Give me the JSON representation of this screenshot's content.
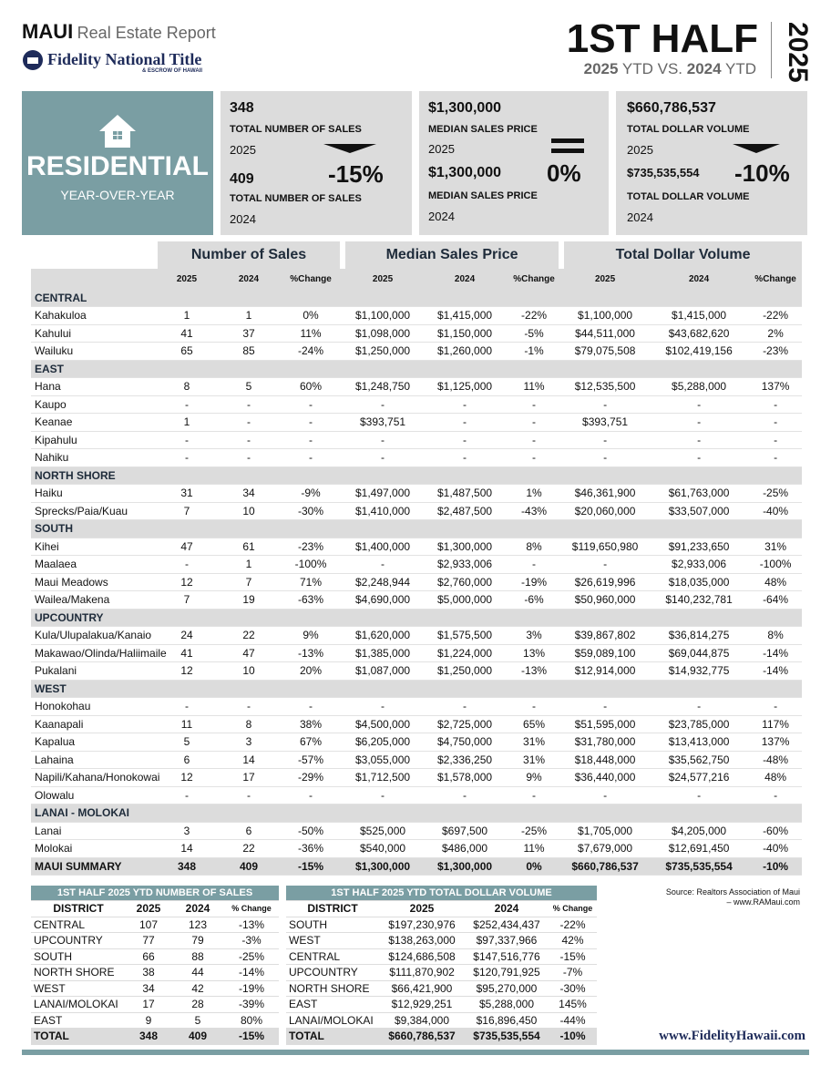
{
  "header": {
    "brand": "MAUI",
    "subtitle": "Real Estate Report",
    "logo": "Fidelity National Title",
    "logo_sub": "& ESCROW OF HAWAII",
    "period": "1ST HALF",
    "year_a": "2025",
    "ytd_a": "YTD VS.",
    "year_b": "2024",
    "ytd_b": "YTD",
    "side_year": "2025"
  },
  "summary": {
    "label": "RESIDENTIAL",
    "sublabel": "YEAR-OVER-YEAR",
    "cards": [
      {
        "value": "348",
        "label": "TOTAL NUMBER OF SALES",
        "year": "2025",
        "prev_value": "409",
        "prev_label": "TOTAL NUMBER OF SALES",
        "prev_year": "2024",
        "change": "-15%"
      },
      {
        "value": "$1,300,000",
        "label": "MEDIAN SALES PRICE",
        "year": "2025",
        "prev_value": "$1,300,000",
        "prev_label": "MEDIAN SALES PRICE",
        "prev_year": "2024",
        "change": "0%"
      },
      {
        "value": "$660,786,537",
        "label": "TOTAL DOLLAR VOLUME",
        "year": "2025",
        "prev_value": "$735,535,554",
        "prev_label": "TOTAL DOLLAR VOLUME",
        "prev_year": "2024",
        "change": "-10%"
      }
    ]
  },
  "table": {
    "groups": [
      "Number of Sales",
      "Median Sales Price",
      "Total Dollar Volume"
    ],
    "columns": [
      "2025",
      "2024",
      "%Change",
      "2025",
      "2024",
      "%Change",
      "2025",
      "2024",
      "%Change"
    ],
    "sections": [
      {
        "name": "CENTRAL",
        "rows": [
          [
            "Kahakuloa",
            "1",
            "1",
            "0%",
            "$1,100,000",
            "$1,415,000",
            "-22%",
            "$1,100,000",
            "$1,415,000",
            "-22%"
          ],
          [
            "Kahului",
            "41",
            "37",
            "11%",
            "$1,098,000",
            "$1,150,000",
            "-5%",
            "$44,511,000",
            "$43,682,620",
            "2%"
          ],
          [
            "Wailuku",
            "65",
            "85",
            "-24%",
            "$1,250,000",
            "$1,260,000",
            "-1%",
            "$79,075,508",
            "$102,419,156",
            "-23%"
          ]
        ]
      },
      {
        "name": "EAST",
        "rows": [
          [
            "Hana",
            "8",
            "5",
            "60%",
            "$1,248,750",
            "$1,125,000",
            "11%",
            "$12,535,500",
            "$5,288,000",
            "137%"
          ],
          [
            "Kaupo",
            "-",
            "-",
            "-",
            "-",
            "-",
            "-",
            "-",
            "-",
            "-"
          ],
          [
            "Keanae",
            "1",
            "-",
            "-",
            "$393,751",
            "-",
            "-",
            "$393,751",
            "-",
            "-"
          ],
          [
            "Kipahulu",
            "-",
            "-",
            "-",
            "-",
            "-",
            "-",
            "-",
            "-",
            "-"
          ],
          [
            "Nahiku",
            "-",
            "-",
            "-",
            "-",
            "-",
            "-",
            "-",
            "-",
            "-"
          ]
        ]
      },
      {
        "name": "NORTH SHORE",
        "rows": [
          [
            "Haiku",
            "31",
            "34",
            "-9%",
            "$1,497,000",
            "$1,487,500",
            "1%",
            "$46,361,900",
            "$61,763,000",
            "-25%"
          ],
          [
            "Sprecks/Paia/Kuau",
            "7",
            "10",
            "-30%",
            "$1,410,000",
            "$2,487,500",
            "-43%",
            "$20,060,000",
            "$33,507,000",
            "-40%"
          ]
        ]
      },
      {
        "name": "SOUTH",
        "rows": [
          [
            "Kihei",
            "47",
            "61",
            "-23%",
            "$1,400,000",
            "$1,300,000",
            "8%",
            "$119,650,980",
            "$91,233,650",
            "31%"
          ],
          [
            "Maalaea",
            "-",
            "1",
            "-100%",
            "-",
            "$2,933,006",
            "-",
            "-",
            "$2,933,006",
            "-100%"
          ],
          [
            "Maui Meadows",
            "12",
            "7",
            "71%",
            "$2,248,944",
            "$2,760,000",
            "-19%",
            "$26,619,996",
            "$18,035,000",
            "48%"
          ],
          [
            "Wailea/Makena",
            "7",
            "19",
            "-63%",
            "$4,690,000",
            "$5,000,000",
            "-6%",
            "$50,960,000",
            "$140,232,781",
            "-64%"
          ]
        ]
      },
      {
        "name": "UPCOUNTRY",
        "rows": [
          [
            "Kula/Ulupalakua/Kanaio",
            "24",
            "22",
            "9%",
            "$1,620,000",
            "$1,575,500",
            "3%",
            "$39,867,802",
            "$36,814,275",
            "8%"
          ],
          [
            "Makawao/Olinda/Haliimaile",
            "41",
            "47",
            "-13%",
            "$1,385,000",
            "$1,224,000",
            "13%",
            "$59,089,100",
            "$69,044,875",
            "-14%"
          ],
          [
            "Pukalani",
            "12",
            "10",
            "20%",
            "$1,087,000",
            "$1,250,000",
            "-13%",
            "$12,914,000",
            "$14,932,775",
            "-14%"
          ]
        ]
      },
      {
        "name": "WEST",
        "rows": [
          [
            "Honokohau",
            "-",
            "-",
            "-",
            "-",
            "-",
            "-",
            "-",
            "-",
            "-"
          ],
          [
            "Kaanapali",
            "11",
            "8",
            "38%",
            "$4,500,000",
            "$2,725,000",
            "65%",
            "$51,595,000",
            "$23,785,000",
            "117%"
          ],
          [
            "Kapalua",
            "5",
            "3",
            "67%",
            "$6,205,000",
            "$4,750,000",
            "31%",
            "$31,780,000",
            "$13,413,000",
            "137%"
          ],
          [
            "Lahaina",
            "6",
            "14",
            "-57%",
            "$3,055,000",
            "$2,336,250",
            "31%",
            "$18,448,000",
            "$35,562,750",
            "-48%"
          ],
          [
            "Napili/Kahana/Honokowai",
            "12",
            "17",
            "-29%",
            "$1,712,500",
            "$1,578,000",
            "9%",
            "$36,440,000",
            "$24,577,216",
            "48%"
          ],
          [
            "Olowalu",
            "-",
            "-",
            "-",
            "-",
            "-",
            "-",
            "-",
            "-",
            "-"
          ]
        ]
      },
      {
        "name": "LANAI - MOLOKAI",
        "rows": [
          [
            "Lanai",
            "3",
            "6",
            "-50%",
            "$525,000",
            "$697,500",
            "-25%",
            "$1,705,000",
            "$4,205,000",
            "-60%"
          ],
          [
            "Molokai",
            "14",
            "22",
            "-36%",
            "$540,000",
            "$486,000",
            "11%",
            "$7,679,000",
            "$12,691,450",
            "-40%"
          ]
        ]
      }
    ],
    "summary_row": [
      "MAUI SUMMARY",
      "348",
      "409",
      "-15%",
      "$1,300,000",
      "$1,300,000",
      "0%",
      "$660,786,537",
      "$735,535,554",
      "-10%"
    ]
  },
  "sales_table": {
    "title": "1ST HALF 2025 YTD NUMBER OF SALES",
    "columns": [
      "DISTRICT",
      "2025",
      "2024",
      "% Change"
    ],
    "rows": [
      [
        "CENTRAL",
        "107",
        "123",
        "-13%"
      ],
      [
        "UPCOUNTRY",
        "77",
        "79",
        "-3%"
      ],
      [
        "SOUTH",
        "66",
        "88",
        "-25%"
      ],
      [
        "NORTH SHORE",
        "38",
        "44",
        "-14%"
      ],
      [
        "WEST",
        "34",
        "42",
        "-19%"
      ],
      [
        "LANAI/MOLOKAI",
        "17",
        "28",
        "-39%"
      ],
      [
        "EAST",
        "9",
        "5",
        "80%"
      ]
    ],
    "total": [
      "TOTAL",
      "348",
      "409",
      "-15%"
    ]
  },
  "volume_table": {
    "title": "1ST HALF 2025 YTD TOTAL DOLLAR VOLUME",
    "columns": [
      "DISTRICT",
      "2025",
      "2024",
      "% Change"
    ],
    "rows": [
      [
        "SOUTH",
        "$197,230,976",
        "$252,434,437",
        "-22%"
      ],
      [
        "WEST",
        "$138,263,000",
        "$97,337,966",
        "42%"
      ],
      [
        "CENTRAL",
        "$124,686,508",
        "$147,516,776",
        "-15%"
      ],
      [
        "UPCOUNTRY",
        "$111,870,902",
        "$120,791,925",
        "-7%"
      ],
      [
        "NORTH SHORE",
        "$66,421,900",
        "$95,270,000",
        "-30%"
      ],
      [
        "EAST",
        "$12,929,251",
        "$5,288,000",
        "145%"
      ],
      [
        "LANAI/MOLOKAI",
        "$9,384,000",
        "$16,896,450",
        "-44%"
      ]
    ],
    "total": [
      "TOTAL",
      "$660,786,537",
      "$735,535,554",
      "-10%"
    ]
  },
  "footer": {
    "source": "Source: Realtors Association of Maui",
    "source_url": "– www.RAMaui.com",
    "website": "www.FidelityHawaii.com"
  }
}
